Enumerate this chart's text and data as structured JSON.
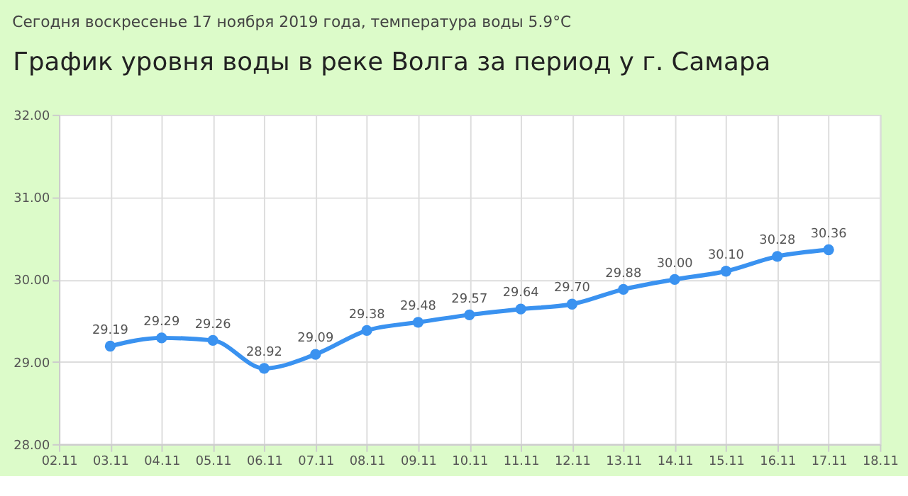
{
  "chart_data": {
    "type": "line",
    "subtitle": "Сегодня воскресенье 17 ноября 2019 года, температура воды 5.9°C",
    "title": "График уровня воды в реке Волга за период у г. Самара",
    "categories": [
      "02.11",
      "03.11",
      "04.11",
      "05.11",
      "06.11",
      "07.11",
      "08.11",
      "09.11",
      "10.11",
      "11.11",
      "12.11",
      "13.11",
      "14.11",
      "15.11",
      "16.11",
      "17.11",
      "18.11"
    ],
    "series": [
      {
        "color": "#3a92f0",
        "values": [
          null,
          29.19,
          29.29,
          29.26,
          28.92,
          29.09,
          29.38,
          29.48,
          29.57,
          29.64,
          29.7,
          29.88,
          30.0,
          30.1,
          30.28,
          30.36,
          null
        ],
        "value_labels": [
          null,
          "29.19",
          "29.29",
          "29.26",
          "28.92",
          "29.09",
          "29.38",
          "29.48",
          "29.57",
          "29.64",
          "29.70",
          "29.88",
          "30.00",
          "30.10",
          "30.28",
          "30.36",
          null
        ]
      }
    ],
    "ylim": [
      28,
      32
    ],
    "yticks": [
      {
        "value": 28,
        "label": "28.00"
      },
      {
        "value": 29,
        "label": "29.00"
      },
      {
        "value": 30,
        "label": "30.00"
      },
      {
        "value": 31,
        "label": "31.00"
      },
      {
        "value": 32,
        "label": "32.00"
      }
    ],
    "grid": true,
    "marker": "circle",
    "line_style": "solid"
  }
}
